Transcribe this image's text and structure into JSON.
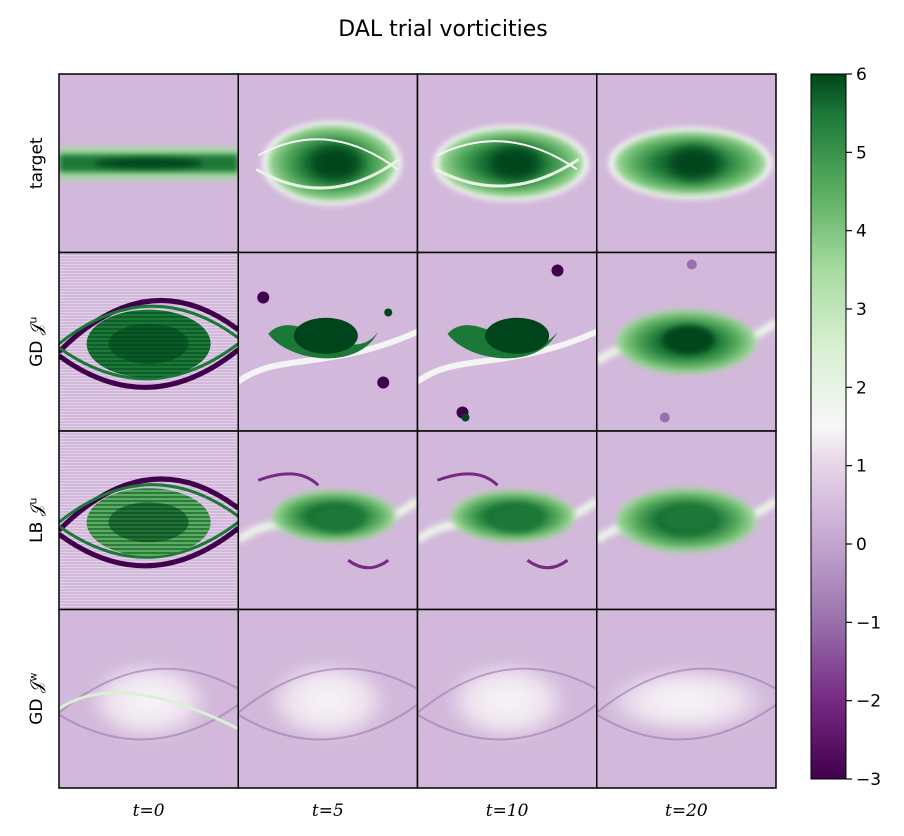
{
  "chart_data": {
    "type": "heatmap",
    "title": "DAL trial vorticities",
    "rows": [
      "target",
      "GD 𝒥ᵘ",
      "LB 𝒥ᵘ",
      "GD 𝒥ʷ"
    ],
    "columns": [
      "t=0",
      "t=5",
      "t=10",
      "t=20"
    ],
    "colorbar": {
      "colormap": "PRGn",
      "range": [
        -3,
        6
      ],
      "ticks": [
        "6",
        "5",
        "4",
        "3",
        "2",
        "1",
        "0",
        "−1",
        "−2",
        "−3"
      ]
    }
  }
}
